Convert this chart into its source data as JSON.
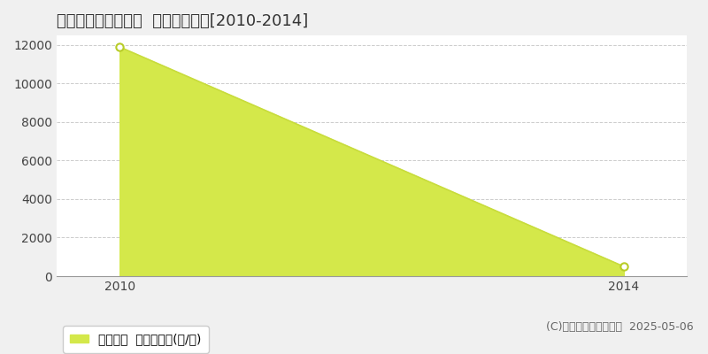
{
  "title": "那須郡那珂川町大内  農地価格推移[2010-2014]",
  "years": [
    2010,
    2014
  ],
  "values": [
    11900,
    500
  ],
  "fill_color": "#d4e84a",
  "line_color": "#c8dc3c",
  "marker_edge_color": "#b8cc28",
  "background_color": "#f0f0f0",
  "plot_bg_color": "#ffffff",
  "grid_color": "#cccccc",
  "ylim": [
    0,
    12500
  ],
  "yticks": [
    0,
    2000,
    4000,
    6000,
    8000,
    10000,
    12000
  ],
  "xlim": [
    2009.5,
    2014.5
  ],
  "xticks": [
    2010,
    2014
  ],
  "legend_label": "農地価格  平均坪単価(円/坪)",
  "copyright_text": "(C)土地価格ドットコム  2025-05-06",
  "title_fontsize": 13,
  "tick_fontsize": 10,
  "legend_fontsize": 10,
  "copyright_fontsize": 9
}
